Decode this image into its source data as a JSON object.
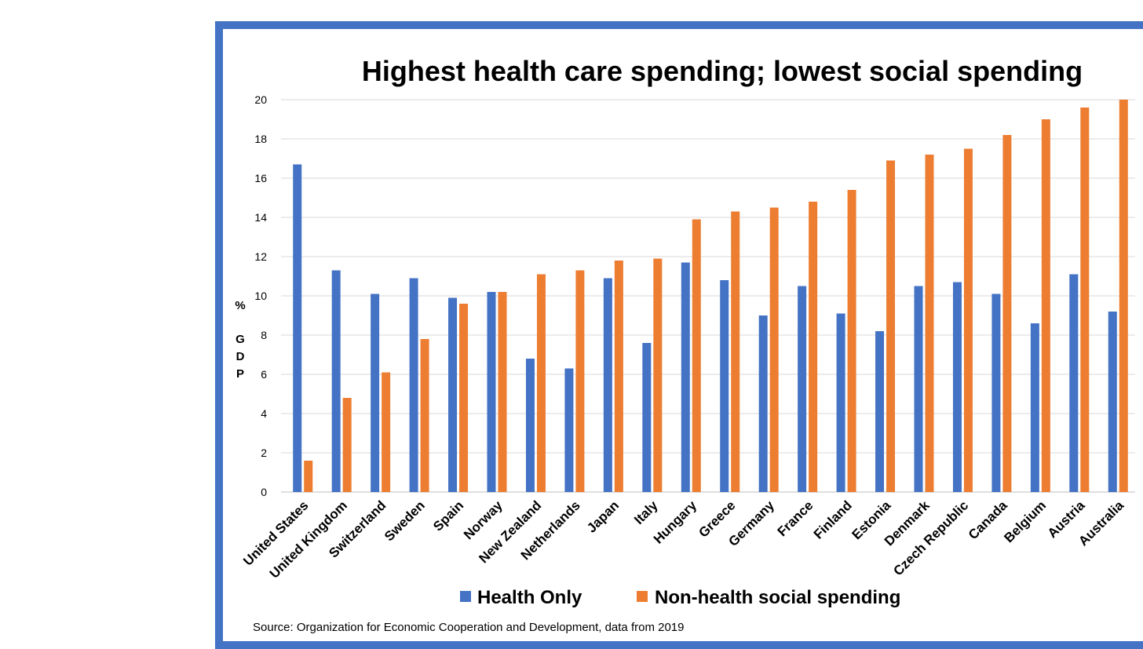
{
  "chart_data": {
    "type": "bar",
    "title": "Highest health care spending; lowest social spending",
    "ylabel": "% GDP",
    "ylabel_lines": [
      "%",
      "G",
      "D",
      "P"
    ],
    "ylim": [
      0,
      20
    ],
    "yticks": [
      "0",
      "2",
      "4",
      "6",
      "8",
      "10",
      "12",
      "14",
      "16",
      "18",
      "20"
    ],
    "grid": true,
    "legend": "bottom",
    "categories": [
      "United States",
      "United Kingdom",
      "Switzerland",
      "Sweden",
      "Spain",
      "Norway",
      "New Zealand",
      "Netherlands",
      "Japan",
      "Italy",
      "Hungary",
      "Greece",
      "Germany",
      "France",
      "Finland",
      "Estonia",
      "Denmark",
      "Czech Republic",
      "Canada",
      "Belgium",
      "Austria",
      "Australia"
    ],
    "series": [
      {
        "name": "Health Only",
        "color": "#4472c4",
        "values": [
          16.7,
          11.3,
          10.1,
          10.9,
          9.9,
          10.2,
          6.8,
          6.3,
          10.9,
          7.6,
          11.7,
          10.8,
          9.0,
          10.5,
          9.1,
          8.2,
          10.5,
          10.7,
          10.1,
          8.6,
          11.1,
          9.2
        ]
      },
      {
        "name": "Non-health social spending",
        "color": "#ed7d31",
        "values": [
          1.6,
          4.8,
          6.1,
          7.8,
          9.6,
          10.2,
          11.1,
          11.3,
          11.8,
          11.9,
          13.9,
          14.3,
          14.5,
          14.8,
          15.4,
          16.9,
          17.2,
          17.5,
          18.2,
          19.0,
          19.6,
          20.0
        ]
      }
    ],
    "source": "Source: Organization for Economic Cooperation and Development, data from 2019"
  }
}
